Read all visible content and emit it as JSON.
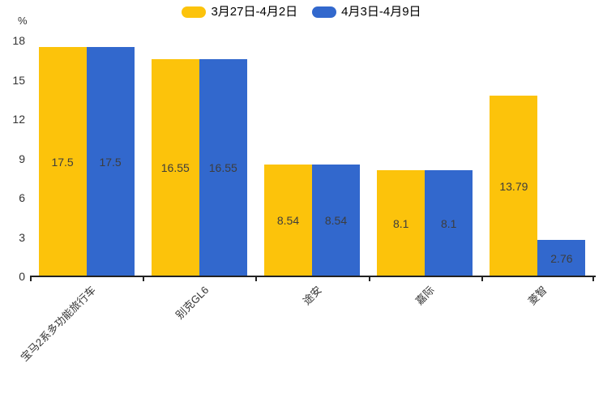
{
  "chart_data": {
    "type": "bar",
    "title": "",
    "categories": [
      "宝马2系多功能旅行车",
      "别克GL6",
      "途安",
      "嘉际",
      "菱智"
    ],
    "series": [
      {
        "name": "3月27日-4月2日",
        "color": "#FCC30B",
        "values": [
          17.5,
          16.55,
          8.54,
          8.1,
          13.79
        ]
      },
      {
        "name": "4月3日-4月9日",
        "color": "#3268CD",
        "values": [
          17.5,
          16.55,
          8.54,
          8.1,
          2.76
        ]
      }
    ],
    "xlabel": "",
    "ylabel": "%",
    "ylim": [
      0,
      18
    ],
    "yticks": [
      0,
      3,
      6,
      9,
      12,
      15,
      18
    ],
    "grid": false,
    "legend_position": "top",
    "value_labels": "inside-center"
  },
  "colors": {
    "background": "#ffffff",
    "axis": "#222222",
    "tick_text": "#333333",
    "value_label_text": "#3d3d3d",
    "legend_text": "#000000"
  }
}
